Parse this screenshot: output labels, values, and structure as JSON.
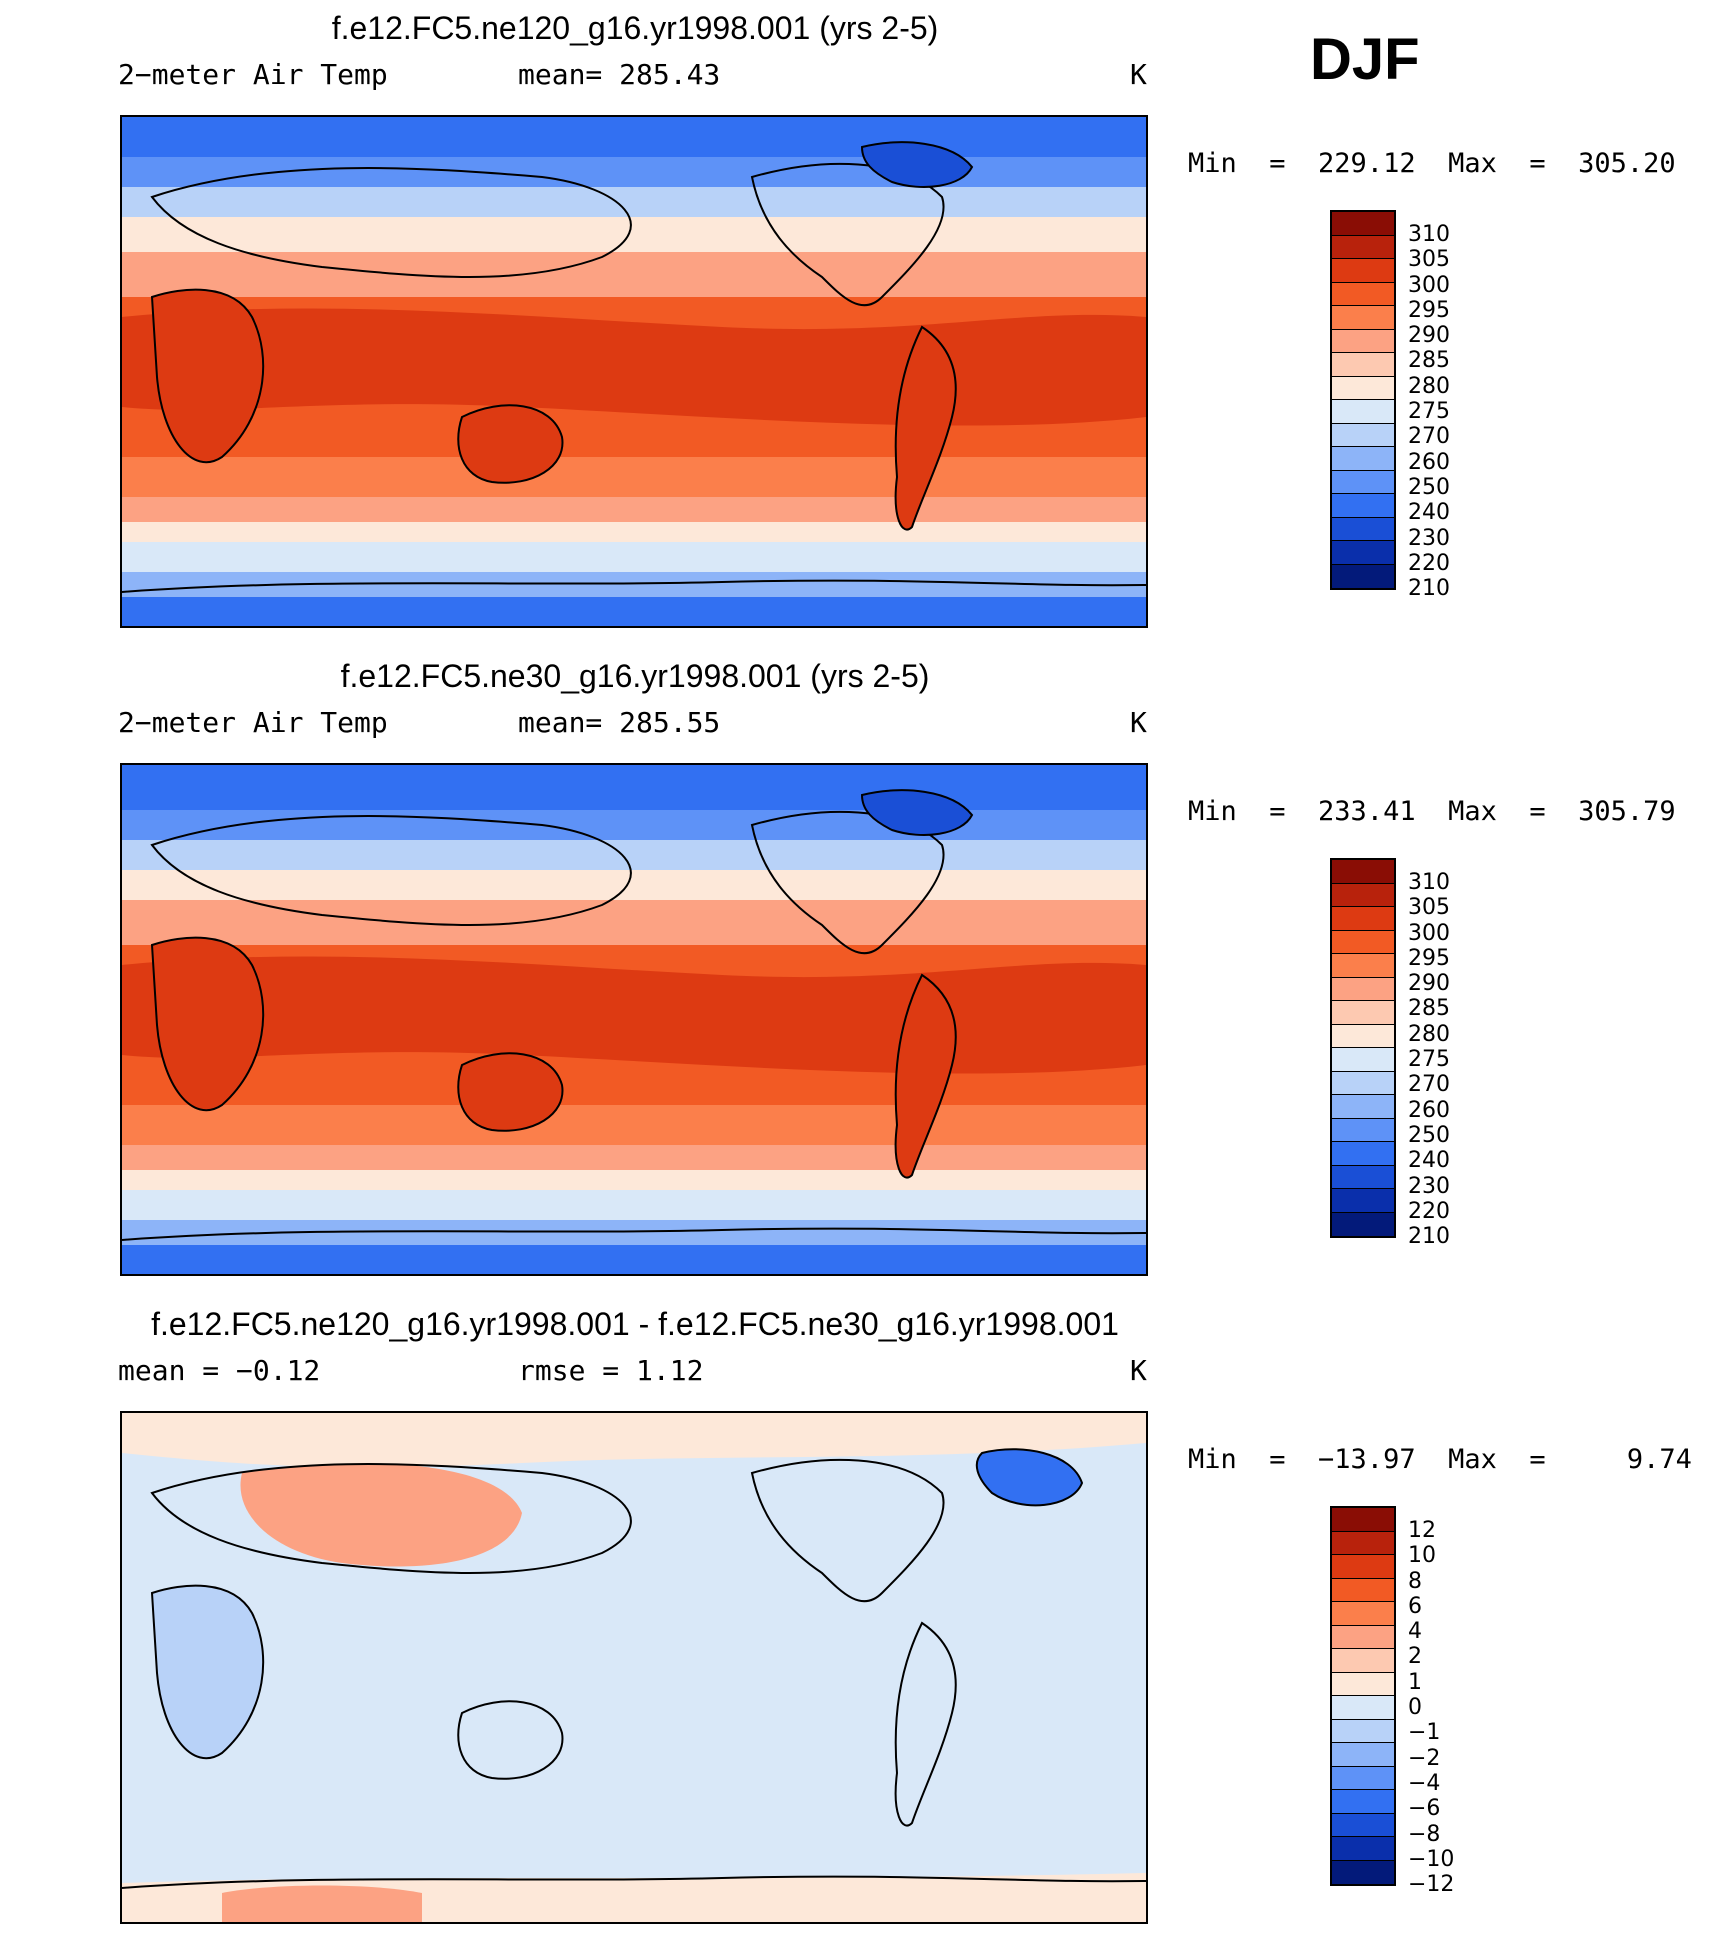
{
  "season": "DJF",
  "panels": [
    {
      "title": "f.e12.FC5.ne120_g16.yr1998.001 (yrs 2-5)",
      "left_label": "2−meter Air Temp",
      "center_label": "mean=  285.43",
      "right_label": "K",
      "minmax": "Min  =  229.12  Max  =  305.20",
      "colorbar_labels": [
        "310",
        "305",
        "300",
        "295",
        "290",
        "285",
        "280",
        "275",
        "270",
        "260",
        "250",
        "240",
        "230",
        "220",
        "210"
      ],
      "colors": [
        "#8a0d05",
        "#b8220c",
        "#dd3a12",
        "#f25a24",
        "#fb7f4b",
        "#fca283",
        "#fdc9b1",
        "#fde8d9",
        "#d9e8f8",
        "#b8d2f8",
        "#8db4f8",
        "#5e92f7",
        "#3270f2",
        "#1a4fd6",
        "#0a2fab",
        "#031a7a"
      ]
    },
    {
      "title": "f.e12.FC5.ne30_g16.yr1998.001 (yrs 2-5)",
      "left_label": "2−meter Air Temp",
      "center_label": "mean=  285.55",
      "right_label": "K",
      "minmax": "Min  =  233.41  Max  =  305.79",
      "colorbar_labels": [
        "310",
        "305",
        "300",
        "295",
        "290",
        "285",
        "280",
        "275",
        "270",
        "260",
        "250",
        "240",
        "230",
        "220",
        "210"
      ],
      "colors": [
        "#8a0d05",
        "#b8220c",
        "#dd3a12",
        "#f25a24",
        "#fb7f4b",
        "#fca283",
        "#fdc9b1",
        "#fde8d9",
        "#d9e8f8",
        "#b8d2f8",
        "#8db4f8",
        "#5e92f7",
        "#3270f2",
        "#1a4fd6",
        "#0a2fab",
        "#031a7a"
      ]
    },
    {
      "title": "f.e12.FC5.ne120_g16.yr1998.001 - f.e12.FC5.ne30_g16.yr1998.001",
      "left_label": "mean  =   −0.12",
      "center_label": "rmse  =     1.12",
      "right_label": "K",
      "minmax": "Min  =  −13.97  Max  =     9.74",
      "colorbar_labels": [
        "12",
        "10",
        "8",
        "6",
        "4",
        "2",
        "1",
        "0",
        "−1",
        "−2",
        "−4",
        "−6",
        "−8",
        "−10",
        "−12"
      ],
      "colors": [
        "#8a0d05",
        "#b8220c",
        "#dd3a12",
        "#f25a24",
        "#fb7f4b",
        "#fca283",
        "#fdc9b1",
        "#fde8d9",
        "#d9e8f8",
        "#b8d2f8",
        "#8db4f8",
        "#5e92f7",
        "#3270f2",
        "#1a4fd6",
        "#0a2fab",
        "#031a7a"
      ]
    }
  ]
}
